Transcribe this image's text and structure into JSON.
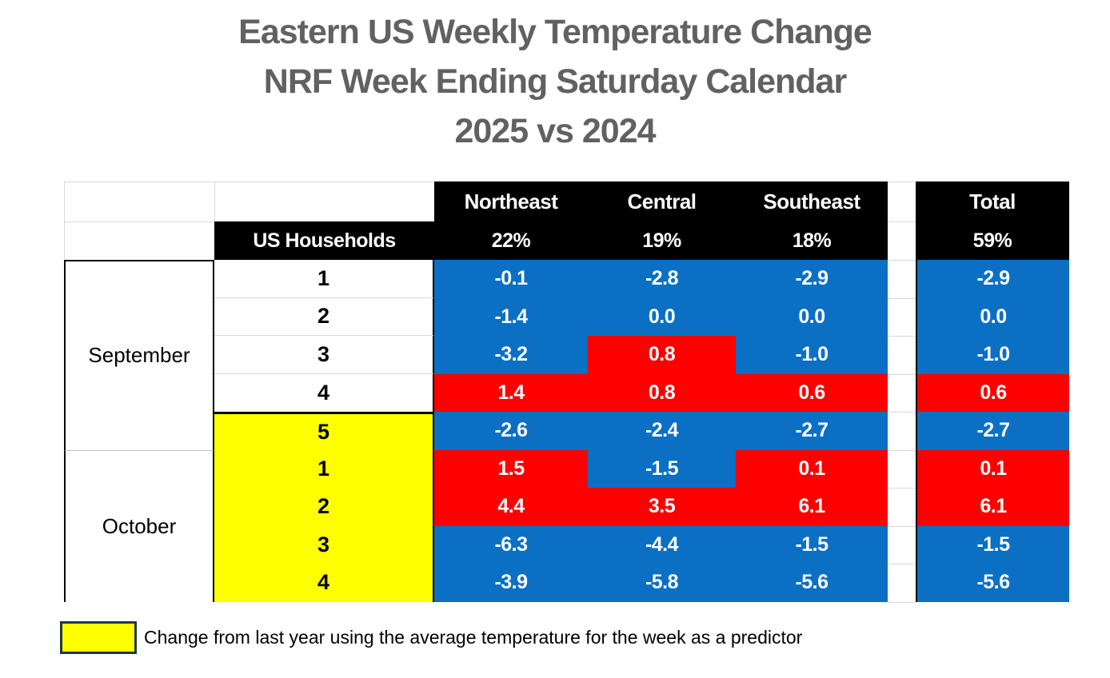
{
  "title": {
    "lines": [
      "Eastern US Weekly Temperature Change",
      "NRF Week Ending Saturday Calendar",
      "2025 vs 2024"
    ]
  },
  "chart_data": {
    "type": "table",
    "columns": [
      "Northeast",
      "Central",
      "Southeast",
      "Total"
    ],
    "shares_row_label": "US Households",
    "shares": [
      "22%",
      "19%",
      "18%",
      "59%"
    ],
    "months": [
      {
        "name": "September",
        "week_rows": 5
      },
      {
        "name": "October",
        "week_rows": 4
      }
    ],
    "rows": [
      {
        "month": "September",
        "week": "1",
        "predictor_week": false,
        "values": [
          "-0.1",
          "-2.8",
          "-2.9",
          "-2.9"
        ]
      },
      {
        "month": "September",
        "week": "2",
        "predictor_week": false,
        "values": [
          "-1.4",
          "0.0",
          "0.0",
          "0.0"
        ]
      },
      {
        "month": "September",
        "week": "3",
        "predictor_week": false,
        "values": [
          "-3.2",
          "0.8",
          "-1.0",
          "-1.0"
        ]
      },
      {
        "month": "September",
        "week": "4",
        "predictor_week": false,
        "values": [
          "1.4",
          "0.8",
          "0.6",
          "0.6"
        ]
      },
      {
        "month": "September",
        "week": "5",
        "predictor_week": true,
        "values": [
          "-2.6",
          "-2.4",
          "-2.7",
          "-2.7"
        ]
      },
      {
        "month": "October",
        "week": "1",
        "predictor_week": true,
        "values": [
          "1.5",
          "-1.5",
          "0.1",
          "0.1"
        ]
      },
      {
        "month": "October",
        "week": "2",
        "predictor_week": true,
        "values": [
          "4.4",
          "3.5",
          "6.1",
          "6.1"
        ]
      },
      {
        "month": "October",
        "week": "3",
        "predictor_week": true,
        "values": [
          "-6.3",
          "-4.4",
          "-1.5",
          "-1.5"
        ]
      },
      {
        "month": "October",
        "week": "4",
        "predictor_week": true,
        "values": [
          "-3.9",
          "-5.8",
          "-5.6",
          "-5.6"
        ]
      }
    ],
    "color_rule": {
      "positive": "#FF0000",
      "negative_or_zero": "#0B70C4",
      "predictor_week_bg": "#FFFF00",
      "header_bg": "#000000"
    }
  },
  "legend": {
    "text": "Change from last year using the average temperature for the week as a predictor",
    "swatch_color": "#FFFF00"
  }
}
